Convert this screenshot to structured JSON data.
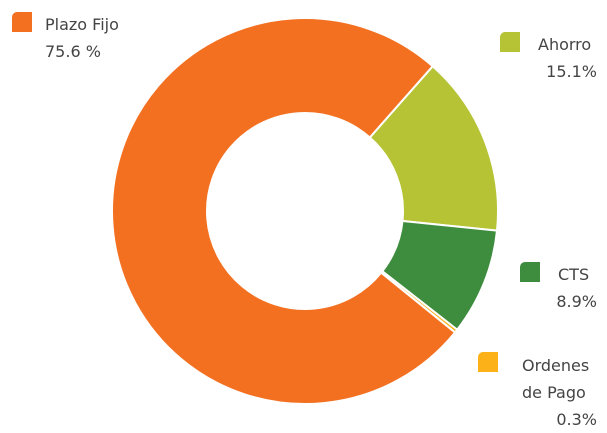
{
  "chart_data": {
    "type": "donut",
    "categories": [
      "Plazo Fijo",
      "Ahorro",
      "CTS",
      "Ordenes de Pago"
    ],
    "values": [
      75.6,
      15.1,
      8.9,
      0.3
    ],
    "value_labels": [
      "75.6 %",
      "15.1%",
      "8.9%",
      "0.3%"
    ],
    "colors": [
      "#f37021",
      "#b5c334",
      "#3e8c3e",
      "#fbb117"
    ]
  }
}
